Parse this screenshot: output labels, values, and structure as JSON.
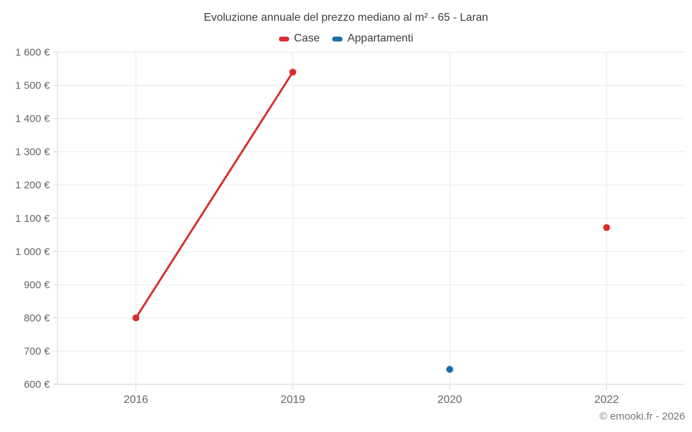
{
  "chart_data": {
    "type": "line",
    "title": "Evoluzione annuale del prezzo mediano al m² - 65 - Laran",
    "categories": [
      "2016",
      "2019",
      "2020",
      "2022"
    ],
    "series": [
      {
        "name": "Case",
        "color": "#d9302e",
        "values": [
          800,
          1540,
          null,
          1072
        ]
      },
      {
        "name": "Appartamenti",
        "color": "#1b6ca8",
        "values": [
          null,
          null,
          645,
          null
        ]
      }
    ],
    "ylim": [
      600,
      1600
    ],
    "ytick_step": 100,
    "ytick_labels": [
      "600 €",
      "700 €",
      "800 €",
      "900 €",
      "1 000 €",
      "1 100 €",
      "1 200 €",
      "1 300 €",
      "1 400 €",
      "1 500 €",
      "1 600 €"
    ],
    "xlabel": "",
    "ylabel": "",
    "grid": true,
    "legend_position": "top",
    "footer": "© emooki.fr - 2026",
    "colors": {
      "grid": "#e9e9e9",
      "axis": "#d4d4d4",
      "tick_label": "#666666",
      "title_text": "#3d3d3d",
      "footer_text": "#757575",
      "background": "#ffffff"
    }
  }
}
